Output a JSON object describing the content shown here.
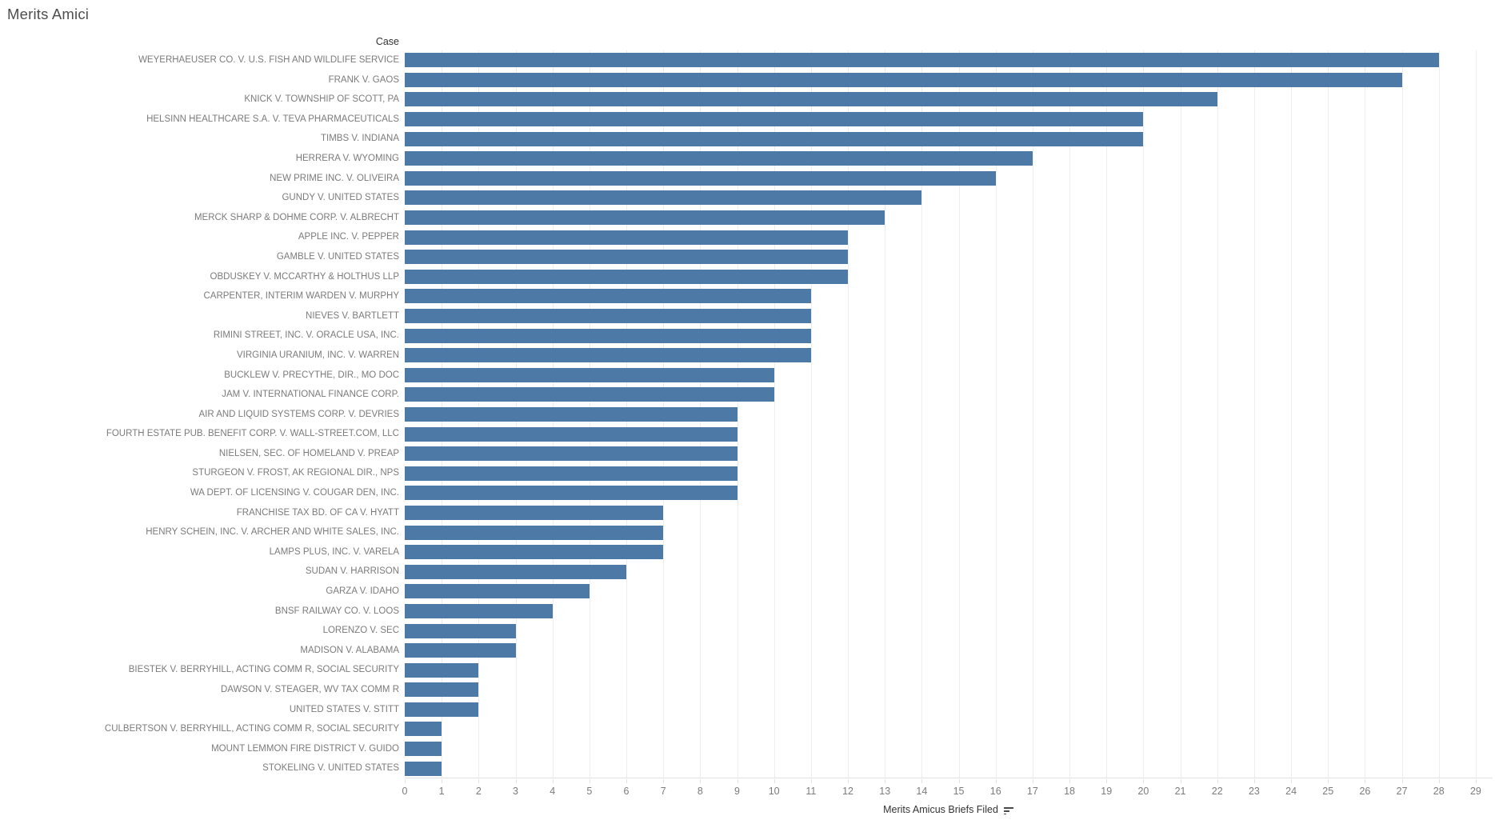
{
  "page_title": "Merits Amici",
  "chart": {
    "column_header": "Case",
    "sort_indicator": "sort-descending-icon"
  },
  "colors": {
    "bar": "#4d79a7",
    "title_text": "#4e4e4e",
    "header_text": "#333333",
    "label_text": "#7b7b7b",
    "gridline": "#ededed",
    "axis_line": "#e2e2e2"
  },
  "chart_data": {
    "type": "bar",
    "orientation": "horizontal",
    "title": "Merits Amici",
    "xlabel": "Merits Amicus Briefs Filed",
    "ylabel": "Case",
    "sort": "descending",
    "grid": true,
    "legend": false,
    "xlim": [
      0,
      29.4
    ],
    "x_ticks": [
      0,
      1,
      2,
      3,
      4,
      5,
      6,
      7,
      8,
      9,
      10,
      11,
      12,
      13,
      14,
      15,
      16,
      17,
      18,
      19,
      20,
      21,
      22,
      23,
      24,
      25,
      26,
      27,
      28,
      29
    ],
    "bar_color": "#4d79a7",
    "categories": [
      "WEYERHAEUSER CO. V. U.S. FISH AND WILDLIFE SERVICE",
      "FRANK V. GAOS",
      "KNICK V. TOWNSHIP OF SCOTT, PA",
      "HELSINN HEALTHCARE S.A. V. TEVA PHARMACEUTICALS",
      "TIMBS V. INDIANA",
      "HERRERA V. WYOMING",
      "NEW PRIME INC. V. OLIVEIRA",
      "GUNDY V. UNITED STATES",
      "MERCK SHARP & DOHME CORP. V. ALBRECHT",
      "APPLE INC. V. PEPPER",
      "GAMBLE V. UNITED STATES",
      "OBDUSKEY V. MCCARTHY & HOLTHUS LLP",
      "CARPENTER, INTERIM WARDEN V. MURPHY",
      "NIEVES V. BARTLETT",
      "RIMINI STREET, INC. V. ORACLE USA, INC.",
      "VIRGINIA URANIUM, INC. V. WARREN",
      "BUCKLEW V. PRECYTHE, DIR., MO DOC",
      "JAM V. INTERNATIONAL FINANCE CORP.",
      "AIR AND LIQUID SYSTEMS CORP. V. DEVRIES",
      "FOURTH ESTATE PUB. BENEFIT CORP. V. WALL-STREET.COM, LLC",
      "NIELSEN, SEC. OF HOMELAND V. PREAP",
      "STURGEON V. FROST, AK REGIONAL DIR., NPS",
      "WA DEPT. OF LICENSING V. COUGAR DEN, INC.",
      "FRANCHISE TAX BD. OF CA V. HYATT",
      "HENRY SCHEIN, INC. V. ARCHER AND WHITE SALES, INC.",
      "LAMPS PLUS, INC. V. VARELA",
      "SUDAN V. HARRISON",
      "GARZA V. IDAHO",
      "BNSF RAILWAY CO. V. LOOS",
      "LORENZO V. SEC",
      "MADISON V. ALABAMA",
      "BIESTEK V. BERRYHILL, ACTING COMM R, SOCIAL SECURITY",
      "DAWSON V. STEAGER, WV TAX COMM R",
      "UNITED STATES V. STITT",
      "CULBERTSON V. BERRYHILL, ACTING COMM R, SOCIAL SECURITY",
      "MOUNT LEMMON FIRE DISTRICT V. GUIDO",
      "STOKELING V. UNITED STATES"
    ],
    "values": [
      28,
      27,
      22,
      20,
      20,
      17,
      16,
      14,
      13,
      12,
      12,
      12,
      11,
      11,
      11,
      11,
      10,
      10,
      9,
      9,
      9,
      9,
      9,
      7,
      7,
      7,
      6,
      5,
      4,
      3,
      3,
      2,
      2,
      2,
      1,
      1,
      1
    ]
  }
}
